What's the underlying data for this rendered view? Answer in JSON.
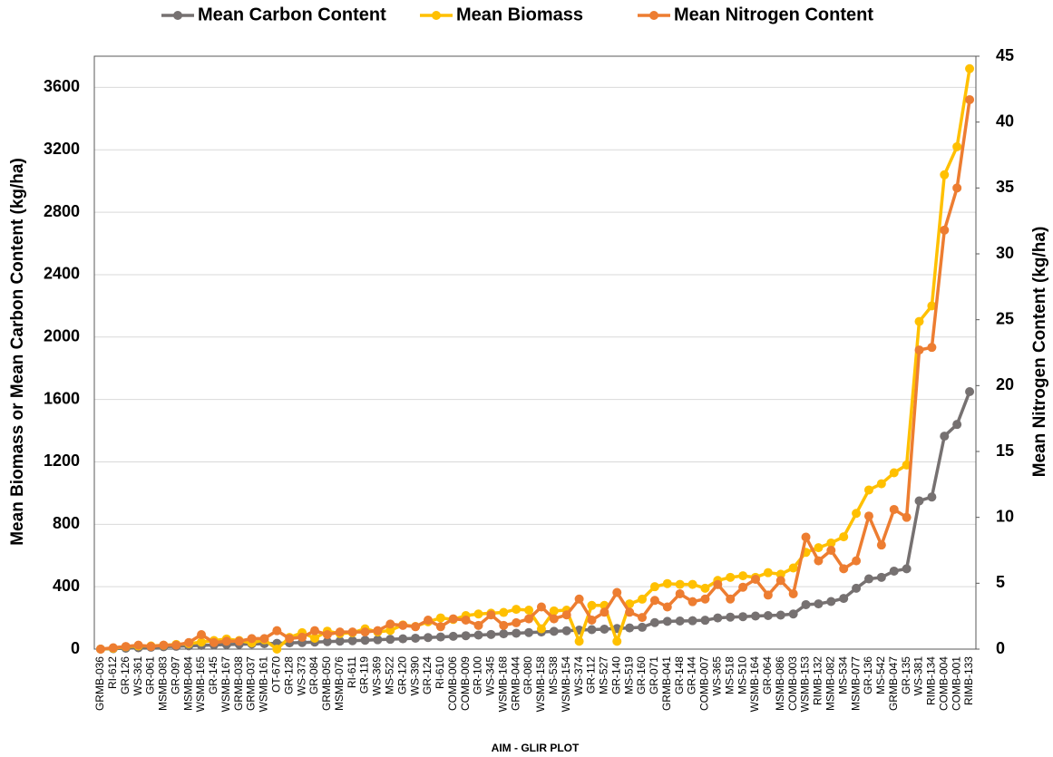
{
  "chart_data": {
    "type": "line",
    "x_label": "AIM - GLIR PLOT",
    "y_label": "Mean Biomass or Mean Carbon Content (kg/ha)",
    "y2_label": "Mean Nitrogen Content (kg/ha)",
    "categories": [
      "GRMB-036",
      "RI-612",
      "GR-126",
      "WS-361",
      "GR-061",
      "MSMB-083",
      "GR-097",
      "MSMB-084",
      "WSMB-165",
      "GR-145",
      "WSMB-167",
      "GRMB-038",
      "GRMB-037",
      "WSMB-161",
      "OT-670",
      "GR-128",
      "WS-373",
      "GR-084",
      "GRMB-050",
      "MSMB-076",
      "RI-611",
      "GR-119",
      "WS-369",
      "MS-522",
      "GR-120",
      "WS-390",
      "GR-124",
      "RI-610",
      "COMB-006",
      "COMB-009",
      "GR-100",
      "WS-345",
      "WSMB-168",
      "GRMB-044",
      "GR-080",
      "WSMB-158",
      "MS-538",
      "WSMB-154",
      "WS-374",
      "GR-112",
      "MS-527",
      "GR-140",
      "MS-519",
      "GR-160",
      "GR-071",
      "GRMB-041",
      "GR-148",
      "GR-144",
      "COMB-007",
      "WS-365",
      "MS-518",
      "MS-510",
      "WSMB-164",
      "GR-064",
      "MSMB-086",
      "COMB-003",
      "WSMB-153",
      "RIMB-132",
      "MSMB-082",
      "MS-534",
      "MSMB-077",
      "GR-136",
      "MS-542",
      "GRMB-047",
      "GR-135",
      "WS-381",
      "RIMB-134",
      "COMB-004",
      "COMB-001",
      "RIMB-133"
    ],
    "series": [
      {
        "name": "Mean Carbon Content",
        "color": "#767171",
        "values": [
          0,
          3,
          6,
          9,
          12,
          15,
          18,
          21,
          24,
          27,
          29,
          31,
          33,
          35,
          37,
          40,
          42,
          45,
          48,
          51,
          54,
          57,
          60,
          63,
          66,
          70,
          74,
          78,
          82,
          86,
          90,
          94,
          98,
          102,
          106,
          110,
          114,
          118,
          122,
          125,
          128,
          132,
          136,
          140,
          170,
          178,
          180,
          182,
          185,
          200,
          205,
          208,
          212,
          215,
          218,
          225,
          285,
          290,
          305,
          325,
          390,
          450,
          460,
          500,
          515,
          950,
          975,
          1365,
          1440,
          1650
        ]
      },
      {
        "name": "Mean Biomass",
        "color": "#ffc000",
        "values": [
          0,
          5,
          15,
          20,
          20,
          25,
          30,
          35,
          45,
          55,
          65,
          55,
          40,
          60,
          0,
          75,
          105,
          70,
          115,
          100,
          105,
          130,
          110,
          120,
          155,
          145,
          175,
          200,
          190,
          215,
          225,
          230,
          235,
          255,
          250,
          130,
          245,
          250,
          50,
          280,
          280,
          50,
          290,
          320,
          400,
          420,
          415,
          415,
          390,
          440,
          460,
          470,
          460,
          490,
          480,
          520,
          620,
          650,
          680,
          720,
          870,
          1020,
          1060,
          1130,
          1180,
          2100,
          2200,
          3040,
          3220,
          3720
        ]
      },
      {
        "name": "Mean Nitrogen Content",
        "color": "#ed7d31",
        "axis": "y2",
        "values": [
          0,
          0.1,
          0.2,
          0.3,
          0.2,
          0.3,
          0.3,
          0.5,
          1.1,
          0.5,
          0.6,
          0.6,
          0.8,
          0.8,
          1.4,
          0.8,
          0.9,
          1.4,
          1.1,
          1.3,
          1.3,
          1.3,
          1.4,
          1.9,
          1.8,
          1.7,
          2.2,
          1.7,
          2.3,
          2.2,
          1.8,
          2.6,
          1.8,
          2.0,
          2.3,
          3.2,
          2.3,
          2.6,
          3.8,
          2.2,
          2.8,
          4.3,
          2.8,
          2.4,
          3.7,
          3.2,
          4.2,
          3.6,
          3.8,
          4.9,
          3.8,
          4.7,
          5.3,
          4.1,
          5.2,
          4.2,
          8.5,
          6.7,
          7.5,
          6.1,
          6.7,
          10.1,
          7.9,
          10.6,
          10.0,
          22.7,
          22.9,
          31.8,
          35,
          41.7
        ]
      }
    ],
    "ylim": [
      0,
      3800
    ],
    "yticks": [
      0,
      400,
      800,
      1200,
      1600,
      2000,
      2400,
      2800,
      3200,
      3600
    ],
    "y2lim": [
      0,
      45
    ],
    "y2ticks": [
      0,
      5,
      10,
      15,
      20,
      25,
      30,
      35,
      40,
      45
    ],
    "grid": true,
    "legend": "top"
  }
}
